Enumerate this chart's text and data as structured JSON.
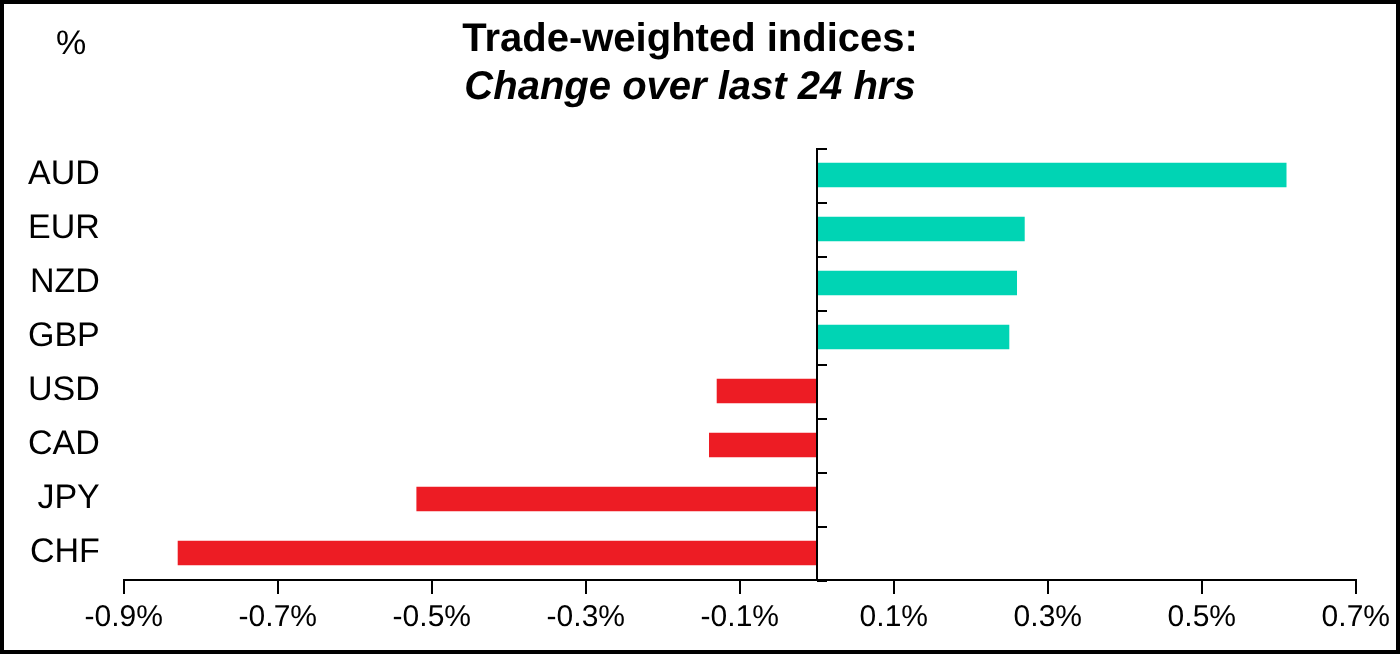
{
  "chart_data": {
    "type": "bar",
    "orientation": "horizontal",
    "title": "Trade-weighted indices:",
    "subtitle": "Change over last 24 hrs",
    "ylabel": "%",
    "categories": [
      "AUD",
      "EUR",
      "NZD",
      "GBP",
      "USD",
      "CAD",
      "JPY",
      "CHF"
    ],
    "values": [
      0.61,
      0.27,
      0.26,
      0.25,
      -0.13,
      -0.14,
      -0.52,
      -0.83
    ],
    "colors": [
      "#00d4b4",
      "#00d4b4",
      "#00d4b4",
      "#00d4b4",
      "#ed1c24",
      "#ed1c24",
      "#ed1c24",
      "#ed1c24"
    ],
    "xlim": [
      -0.9,
      0.7
    ],
    "xticks": [
      {
        "value": -0.9,
        "label": "-0.9%"
      },
      {
        "value": -0.7,
        "label": "-0.7%"
      },
      {
        "value": -0.5,
        "label": "-0.5%"
      },
      {
        "value": -0.3,
        "label": "-0.3%"
      },
      {
        "value": -0.1,
        "label": "-0.1%"
      },
      {
        "value": 0.1,
        "label": "0.1%"
      },
      {
        "value": 0.3,
        "label": "0.3%"
      },
      {
        "value": 0.5,
        "label": "0.5%"
      },
      {
        "value": 0.7,
        "label": "0.7%"
      }
    ],
    "grid": false,
    "legend": false
  }
}
